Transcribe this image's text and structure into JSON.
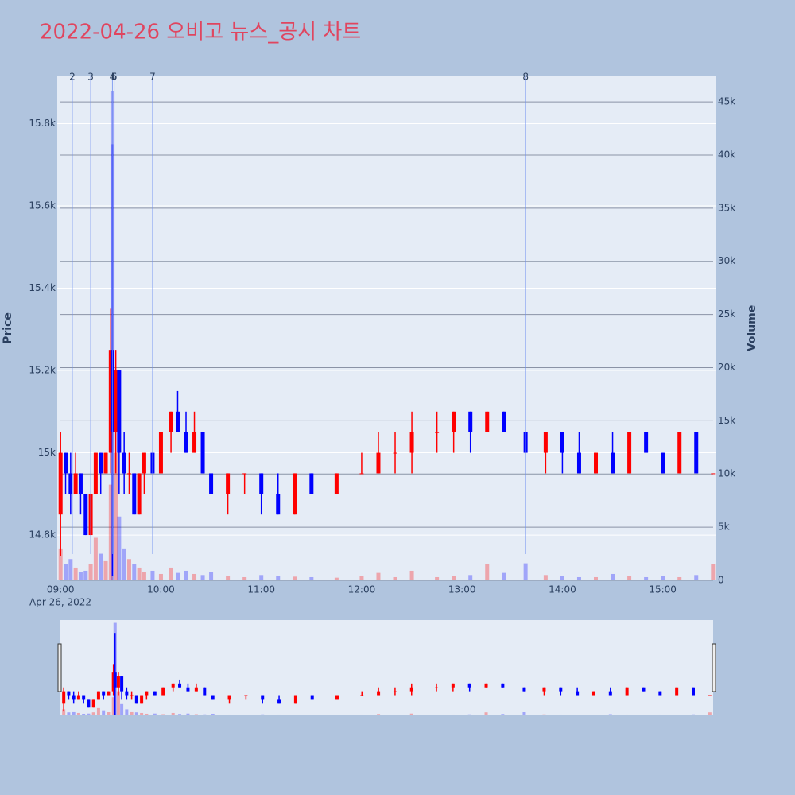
{
  "chart_data": {
    "type": "candlestick",
    "title": "2022-04-26 오비고 뉴스_공시 차트",
    "x_sublabel": "Apr 26, 2022",
    "y_title": "Price",
    "y2_title": "Volume",
    "increasing_color": "#ff0000",
    "decreasing_color": "#0000ff",
    "grid": true,
    "rangeslider": true,
    "x": [
      "09:00",
      "09:03",
      "09:06",
      "09:09",
      "09:12",
      "09:15",
      "09:18",
      "09:21",
      "09:24",
      "09:27",
      "09:30",
      "09:31",
      "09:33",
      "09:35",
      "09:38",
      "09:41",
      "09:44",
      "09:47",
      "09:50",
      "09:55",
      "10:00",
      "10:06",
      "10:10",
      "10:15",
      "10:20",
      "10:25",
      "10:30",
      "10:40",
      "10:50",
      "11:00",
      "11:10",
      "11:20",
      "11:30",
      "11:45",
      "12:00",
      "12:10",
      "12:20",
      "12:30",
      "12:45",
      "12:55",
      "13:05",
      "13:15",
      "13:25",
      "13:38",
      "13:50",
      "14:00",
      "14:10",
      "14:20",
      "14:30",
      "14:40",
      "14:50",
      "15:00",
      "15:10",
      "15:20",
      "15:30"
    ],
    "open": [
      14850,
      15000,
      14950,
      14900,
      14950,
      14900,
      14800,
      14900,
      15000,
      14950,
      15000,
      15250,
      15050,
      15200,
      15000,
      14950,
      14950,
      14850,
      14950,
      15000,
      14950,
      15050,
      15100,
      15050,
      15000,
      15050,
      14950,
      14900,
      14950,
      14950,
      14900,
      14850,
      14950,
      14900,
      14950,
      14950,
      15000,
      15000,
      15050,
      15050,
      15100,
      15050,
      15100,
      15050,
      15000,
      15050,
      15000,
      14950,
      15000,
      14950,
      15050,
      15000,
      14950,
      15050,
      14950
    ],
    "high": [
      15050,
      15000,
      15000,
      15000,
      14950,
      14900,
      14900,
      15000,
      15000,
      15000,
      15350,
      15750,
      15250,
      15200,
      15050,
      15000,
      14950,
      14950,
      15000,
      15000,
      15050,
      15100,
      15150,
      15100,
      15100,
      15050,
      14950,
      14950,
      14950,
      14950,
      14950,
      14950,
      14950,
      14950,
      15000,
      15050,
      15050,
      15100,
      15100,
      15100,
      15100,
      15100,
      15100,
      15050,
      15050,
      15050,
      15050,
      15000,
      15050,
      15050,
      15050,
      15000,
      15050,
      15050,
      14950
    ],
    "low": [
      14750,
      14900,
      14850,
      14900,
      14850,
      14800,
      14800,
      14900,
      14900,
      14950,
      14950,
      14700,
      14950,
      14900,
      14900,
      14900,
      14850,
      14850,
      14900,
      14950,
      14950,
      15000,
      15050,
      15000,
      15000,
      14950,
      14900,
      14850,
      14900,
      14850,
      14850,
      14850,
      14900,
      14900,
      14950,
      14950,
      14950,
      14950,
      15000,
      15000,
      15000,
      15050,
      15050,
      15000,
      14950,
      14950,
      14950,
      14950,
      14950,
      14950,
      15000,
      14950,
      14950,
      14950,
      14950
    ],
    "close": [
      15000,
      14950,
      14900,
      14950,
      14900,
      14800,
      14900,
      15000,
      14950,
      15000,
      15250,
      15050,
      15200,
      15000,
      14950,
      14950,
      14850,
      14950,
      15000,
      14950,
      15050,
      15100,
      15050,
      15000,
      15050,
      14950,
      14900,
      14950,
      14950,
      14900,
      14850,
      14950,
      14900,
      14950,
      14950,
      15000,
      15000,
      15050,
      15050,
      15100,
      15050,
      15100,
      15050,
      15000,
      15050,
      15000,
      14950,
      15000,
      14950,
      15050,
      15000,
      14950,
      15050,
      14950,
      14950
    ],
    "volume": [
      3000,
      1500,
      2000,
      1200,
      800,
      900,
      1500,
      4000,
      2500,
      1800,
      9000,
      46000,
      12000,
      6000,
      3000,
      2000,
      1500,
      1200,
      800,
      900,
      600,
      1200,
      700,
      900,
      600,
      500,
      800,
      400,
      300,
      500,
      400,
      350,
      300,
      250,
      400,
      700,
      300,
      900,
      300,
      400,
      500,
      1500,
      700,
      1600,
      500,
      400,
      300,
      300,
      600,
      400,
      300,
      400,
      300,
      500,
      1500
    ],
    "news": [
      {
        "x": "09:07",
        "label": "2"
      },
      {
        "x": "09:18",
        "label": "3"
      },
      {
        "x": "09:31",
        "label": "4"
      },
      {
        "x": "09:32",
        "label": "5"
      },
      {
        "x": "09:32",
        "label": "6"
      },
      {
        "x": "09:55",
        "label": "7"
      },
      {
        "x": "13:38",
        "label": "8"
      }
    ],
    "xlim": [
      "08:58",
      "15:32"
    ],
    "xticks": [
      "09:00",
      "10:00",
      "11:00",
      "12:00",
      "13:00",
      "14:00",
      "15:00"
    ],
    "ylim": [
      14690,
      15915
    ],
    "yticks": [
      {
        "value": 14800,
        "label": "14.8k"
      },
      {
        "value": 15000,
        "label": "15k"
      },
      {
        "value": 15200,
        "label": "15.2k"
      },
      {
        "value": 15400,
        "label": "15.4k"
      },
      {
        "value": 15600,
        "label": "15.6k"
      },
      {
        "value": 15800,
        "label": "15.8k"
      }
    ],
    "y2lim": [
      0,
      47400
    ],
    "y2ticks": [
      0,
      {
        "value": 5000,
        "label": "5k"
      },
      {
        "value": 10000,
        "label": "10k"
      },
      {
        "value": 15000,
        "label": "15k"
      },
      {
        "value": 20000,
        "label": "20k"
      },
      {
        "value": 25000,
        "label": "25k"
      },
      {
        "value": 30000,
        "label": "30k"
      },
      {
        "value": 35000,
        "label": "35k"
      },
      {
        "value": 40000,
        "label": "40k"
      },
      {
        "value": 45000,
        "label": "45k"
      }
    ]
  }
}
